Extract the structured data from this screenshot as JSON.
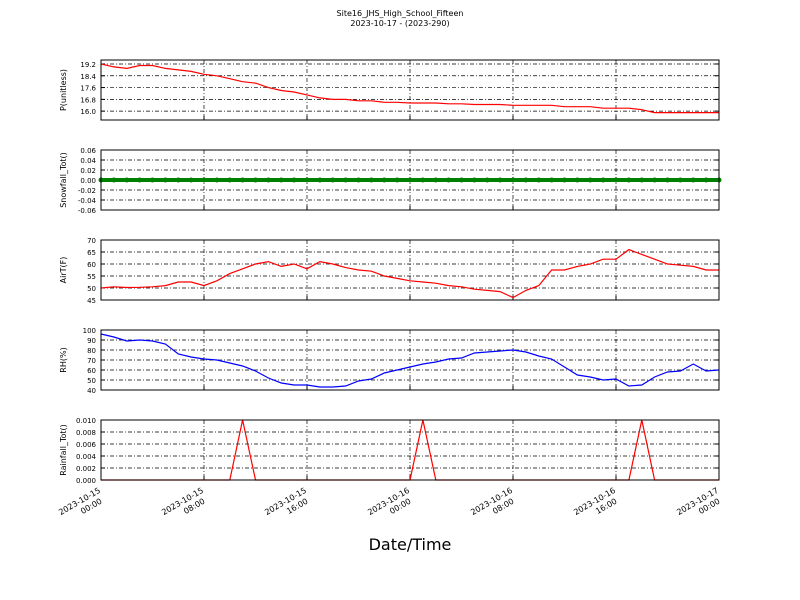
{
  "chart_data": [
    {
      "type": "line",
      "title": "Site16_JHS_High_School_Fifteen",
      "subtitle": "2023-10-17 - (2023-290)",
      "ylabel": "P(unitless)",
      "color": "#ff0000",
      "x": [
        "2023-10-15 00:00",
        "2023-10-15 01:00",
        "2023-10-15 02:00",
        "2023-10-15 03:00",
        "2023-10-15 04:00",
        "2023-10-15 05:00",
        "2023-10-15 06:00",
        "2023-10-15 07:00",
        "2023-10-15 08:00",
        "2023-10-15 09:00",
        "2023-10-15 10:00",
        "2023-10-15 11:00",
        "2023-10-15 12:00",
        "2023-10-15 13:00",
        "2023-10-15 14:00",
        "2023-10-15 15:00",
        "2023-10-15 16:00",
        "2023-10-15 17:00",
        "2023-10-15 18:00",
        "2023-10-15 19:00",
        "2023-10-15 20:00",
        "2023-10-15 21:00",
        "2023-10-15 22:00",
        "2023-10-15 23:00",
        "2023-10-16 00:00",
        "2023-10-16 01:00",
        "2023-10-16 02:00",
        "2023-10-16 03:00",
        "2023-10-16 04:00",
        "2023-10-16 05:00",
        "2023-10-16 06:00",
        "2023-10-16 07:00",
        "2023-10-16 08:00",
        "2023-10-16 09:00",
        "2023-10-16 10:00",
        "2023-10-16 11:00",
        "2023-10-16 12:00",
        "2023-10-16 13:00",
        "2023-10-16 14:00",
        "2023-10-16 15:00",
        "2023-10-16 16:00",
        "2023-10-16 17:00",
        "2023-10-16 18:00",
        "2023-10-16 19:00",
        "2023-10-16 20:00",
        "2023-10-16 21:00",
        "2023-10-16 22:00",
        "2023-10-16 23:00",
        "2023-10-17 00:00"
      ],
      "values": [
        19.2,
        19.0,
        18.9,
        19.1,
        19.1,
        18.9,
        18.8,
        18.7,
        18.5,
        18.4,
        18.2,
        18.0,
        17.9,
        17.6,
        17.4,
        17.3,
        17.1,
        16.9,
        16.8,
        16.8,
        16.7,
        16.7,
        16.6,
        16.6,
        16.55,
        16.55,
        16.55,
        16.5,
        16.5,
        16.45,
        16.45,
        16.45,
        16.4,
        16.4,
        16.4,
        16.4,
        16.3,
        16.3,
        16.3,
        16.2,
        16.2,
        16.2,
        16.1,
        15.9,
        15.9,
        15.9,
        15.9,
        15.9,
        15.9
      ],
      "xlim": [
        "2023-10-15 00:00",
        "2023-10-17 00:00"
      ],
      "xticks": [
        "2023-10-15 00:00",
        "2023-10-15 08:00",
        "2023-10-15 16:00",
        "2023-10-16 00:00",
        "2023-10-16 08:00",
        "2023-10-16 16:00",
        "2023-10-17 00:00"
      ],
      "ylim": [
        15.4,
        19.47
      ],
      "yticks": [
        {
          "value": 16,
          "label": "16.0"
        },
        16.8,
        17.6,
        18.4,
        19.2
      ],
      "grid": true
    },
    {
      "type": "scatter",
      "ylabel": "Snowfall_Tot()",
      "color": "#008000",
      "x": [
        "2023-10-15 00:00",
        "2023-10-15 01:00",
        "2023-10-15 02:00",
        "2023-10-15 03:00",
        "2023-10-15 04:00",
        "2023-10-15 05:00",
        "2023-10-15 06:00",
        "2023-10-15 07:00",
        "2023-10-15 08:00",
        "2023-10-15 09:00",
        "2023-10-15 10:00",
        "2023-10-15 11:00",
        "2023-10-15 12:00",
        "2023-10-15 13:00",
        "2023-10-15 14:00",
        "2023-10-15 15:00",
        "2023-10-15 16:00",
        "2023-10-15 17:00",
        "2023-10-15 18:00",
        "2023-10-15 19:00",
        "2023-10-15 20:00",
        "2023-10-15 21:00",
        "2023-10-15 22:00",
        "2023-10-15 23:00",
        "2023-10-16 00:00",
        "2023-10-16 01:00",
        "2023-10-16 02:00",
        "2023-10-16 03:00",
        "2023-10-16 04:00",
        "2023-10-16 05:00",
        "2023-10-16 06:00",
        "2023-10-16 07:00",
        "2023-10-16 08:00",
        "2023-10-16 09:00",
        "2023-10-16 10:00",
        "2023-10-16 11:00",
        "2023-10-16 12:00",
        "2023-10-16 13:00",
        "2023-10-16 14:00",
        "2023-10-16 15:00",
        "2023-10-16 16:00",
        "2023-10-16 17:00",
        "2023-10-16 18:00",
        "2023-10-16 19:00",
        "2023-10-16 20:00",
        "2023-10-16 21:00",
        "2023-10-16 22:00",
        "2023-10-16 23:00",
        "2023-10-17 00:00"
      ],
      "values": [
        0,
        0,
        0,
        0,
        0,
        0,
        0,
        0,
        0,
        0,
        0,
        0,
        0,
        0,
        0,
        0,
        0,
        0,
        0,
        0,
        0,
        0,
        0,
        0,
        0,
        0,
        0,
        0,
        0,
        0,
        0,
        0,
        0,
        0,
        0,
        0,
        0,
        0,
        0,
        0,
        0,
        0,
        0,
        0,
        0,
        0,
        0,
        0,
        0
      ],
      "xlim": [
        "2023-10-15 00:00",
        "2023-10-17 00:00"
      ],
      "xticks": [
        "2023-10-15 00:00",
        "2023-10-15 08:00",
        "2023-10-15 16:00",
        "2023-10-16 00:00",
        "2023-10-16 08:00",
        "2023-10-16 16:00",
        "2023-10-17 00:00"
      ],
      "ylim": [
        -0.06,
        0.06
      ],
      "yticks": [
        -0.06,
        -0.04,
        -0.02,
        {
          "value": 0,
          "label": "0.00"
        },
        0.02,
        0.04,
        0.06
      ],
      "grid": true
    },
    {
      "type": "line",
      "ylabel": "AirT(F)",
      "color": "#ff0000",
      "x": [
        "2023-10-15 00:00",
        "2023-10-15 01:00",
        "2023-10-15 02:00",
        "2023-10-15 03:00",
        "2023-10-15 04:00",
        "2023-10-15 05:00",
        "2023-10-15 06:00",
        "2023-10-15 07:00",
        "2023-10-15 08:00",
        "2023-10-15 09:00",
        "2023-10-15 10:00",
        "2023-10-15 11:00",
        "2023-10-15 12:00",
        "2023-10-15 13:00",
        "2023-10-15 14:00",
        "2023-10-15 15:00",
        "2023-10-15 16:00",
        "2023-10-15 17:00",
        "2023-10-15 18:00",
        "2023-10-15 19:00",
        "2023-10-15 20:00",
        "2023-10-15 21:00",
        "2023-10-15 22:00",
        "2023-10-15 23:00",
        "2023-10-16 00:00",
        "2023-10-16 01:00",
        "2023-10-16 02:00",
        "2023-10-16 03:00",
        "2023-10-16 04:00",
        "2023-10-16 05:00",
        "2023-10-16 06:00",
        "2023-10-16 07:00",
        "2023-10-16 08:00",
        "2023-10-16 09:00",
        "2023-10-16 10:00",
        "2023-10-16 11:00",
        "2023-10-16 12:00",
        "2023-10-16 13:00",
        "2023-10-16 14:00",
        "2023-10-16 15:00",
        "2023-10-16 16:00",
        "2023-10-16 17:00",
        "2023-10-16 18:00",
        "2023-10-16 19:00",
        "2023-10-16 20:00",
        "2023-10-16 21:00",
        "2023-10-16 22:00",
        "2023-10-16 23:00",
        "2023-10-17 00:00"
      ],
      "values": [
        50,
        50.5,
        50.2,
        50.3,
        50.5,
        51,
        52.5,
        52.5,
        51,
        53,
        56,
        58,
        60,
        61,
        59,
        60,
        58,
        61,
        60,
        58.5,
        57.5,
        57,
        55,
        54,
        53,
        52.5,
        52,
        51,
        50.5,
        49.5,
        49,
        48.5,
        46,
        49,
        51,
        57.5,
        57.5,
        59,
        60,
        62,
        62,
        66,
        64,
        62,
        60,
        59.5,
        59,
        57.5,
        57.5
      ],
      "xlim": [
        "2023-10-15 00:00",
        "2023-10-17 00:00"
      ],
      "xticks": [
        "2023-10-15 00:00",
        "2023-10-15 08:00",
        "2023-10-15 16:00",
        "2023-10-16 00:00",
        "2023-10-16 08:00",
        "2023-10-16 16:00",
        "2023-10-17 00:00"
      ],
      "ylim": [
        45,
        70
      ],
      "yticks": [
        45,
        50,
        55,
        60,
        65,
        70
      ],
      "grid": true
    },
    {
      "type": "line",
      "ylabel": "RH(%)",
      "color": "#0000ff",
      "x": [
        "2023-10-15 00:00",
        "2023-10-15 01:00",
        "2023-10-15 02:00",
        "2023-10-15 03:00",
        "2023-10-15 04:00",
        "2023-10-15 05:00",
        "2023-10-15 06:00",
        "2023-10-15 07:00",
        "2023-10-15 08:00",
        "2023-10-15 09:00",
        "2023-10-15 10:00",
        "2023-10-15 11:00",
        "2023-10-15 12:00",
        "2023-10-15 13:00",
        "2023-10-15 14:00",
        "2023-10-15 15:00",
        "2023-10-15 16:00",
        "2023-10-15 17:00",
        "2023-10-15 18:00",
        "2023-10-15 19:00",
        "2023-10-15 20:00",
        "2023-10-15 21:00",
        "2023-10-15 22:00",
        "2023-10-15 23:00",
        "2023-10-16 00:00",
        "2023-10-16 01:00",
        "2023-10-16 02:00",
        "2023-10-16 03:00",
        "2023-10-16 04:00",
        "2023-10-16 05:00",
        "2023-10-16 06:00",
        "2023-10-16 07:00",
        "2023-10-16 08:00",
        "2023-10-16 09:00",
        "2023-10-16 10:00",
        "2023-10-16 11:00",
        "2023-10-16 12:00",
        "2023-10-16 13:00",
        "2023-10-16 14:00",
        "2023-10-16 15:00",
        "2023-10-16 16:00",
        "2023-10-16 17:00",
        "2023-10-16 18:00",
        "2023-10-16 19:00",
        "2023-10-16 20:00",
        "2023-10-16 21:00",
        "2023-10-16 22:00",
        "2023-10-16 23:00",
        "2023-10-17 00:00"
      ],
      "values": [
        96,
        93,
        89,
        90,
        89,
        86,
        76,
        73,
        71,
        70,
        67,
        64,
        59,
        52,
        47,
        45,
        45,
        43,
        43,
        44,
        49,
        51,
        57,
        60,
        63,
        66,
        68,
        71,
        72,
        77,
        78,
        79,
        80,
        78,
        74,
        71,
        63,
        55,
        53,
        50,
        51,
        44,
        45,
        53,
        58,
        59,
        66,
        59,
        60
      ],
      "xlim": [
        "2023-10-15 00:00",
        "2023-10-17 00:00"
      ],
      "xticks": [
        "2023-10-15 00:00",
        "2023-10-15 08:00",
        "2023-10-15 16:00",
        "2023-10-16 00:00",
        "2023-10-16 08:00",
        "2023-10-16 16:00",
        "2023-10-17 00:00"
      ],
      "ylim": [
        40,
        100
      ],
      "yticks": [
        40,
        50,
        60,
        70,
        80,
        90,
        100
      ],
      "grid": true
    },
    {
      "type": "line",
      "ylabel": "Rainfall_Tot()",
      "xlabel": "Date/Time",
      "color": "#ff0000",
      "x": [
        "2023-10-15 00:00",
        "2023-10-15 01:00",
        "2023-10-15 02:00",
        "2023-10-15 03:00",
        "2023-10-15 04:00",
        "2023-10-15 05:00",
        "2023-10-15 06:00",
        "2023-10-15 07:00",
        "2023-10-15 08:00",
        "2023-10-15 09:00",
        "2023-10-15 10:00",
        "2023-10-15 11:00",
        "2023-10-15 12:00",
        "2023-10-15 13:00",
        "2023-10-15 14:00",
        "2023-10-15 15:00",
        "2023-10-15 16:00",
        "2023-10-15 17:00",
        "2023-10-15 18:00",
        "2023-10-15 19:00",
        "2023-10-15 20:00",
        "2023-10-15 21:00",
        "2023-10-15 22:00",
        "2023-10-15 23:00",
        "2023-10-16 00:00",
        "2023-10-16 01:00",
        "2023-10-16 02:00",
        "2023-10-16 03:00",
        "2023-10-16 04:00",
        "2023-10-16 05:00",
        "2023-10-16 06:00",
        "2023-10-16 07:00",
        "2023-10-16 08:00",
        "2023-10-16 09:00",
        "2023-10-16 10:00",
        "2023-10-16 11:00",
        "2023-10-16 12:00",
        "2023-10-16 13:00",
        "2023-10-16 14:00",
        "2023-10-16 15:00",
        "2023-10-16 16:00",
        "2023-10-16 17:00",
        "2023-10-16 18:00",
        "2023-10-16 19:00",
        "2023-10-16 20:00",
        "2023-10-16 21:00",
        "2023-10-16 22:00",
        "2023-10-16 23:00",
        "2023-10-17 00:00"
      ],
      "values": [
        0,
        0,
        0,
        0,
        0,
        0,
        0,
        0,
        0,
        0,
        0,
        0.01,
        0,
        0,
        0,
        0,
        0,
        0,
        0,
        0,
        0,
        0,
        0,
        0,
        0,
        0.01,
        0,
        0,
        0,
        0,
        0,
        0,
        0,
        0,
        0,
        0,
        0,
        0,
        0,
        0,
        0,
        0,
        0.01,
        0,
        0,
        0,
        0,
        0,
        0
      ],
      "xlim": [
        "2023-10-15 00:00",
        "2023-10-17 00:00"
      ],
      "xticks": [
        "2023-10-15 00:00",
        "2023-10-15 08:00",
        "2023-10-15 16:00",
        "2023-10-16 00:00",
        "2023-10-16 08:00",
        "2023-10-16 16:00",
        "2023-10-17 00:00"
      ],
      "ylim": [
        0,
        0.01
      ],
      "yticks": [
        {
          "value": 0,
          "label": "0.000"
        },
        {
          "value": 0.002,
          "label": "0.002"
        },
        {
          "value": 0.004,
          "label": "0.004"
        },
        {
          "value": 0.006,
          "label": "0.006"
        },
        {
          "value": 0.008,
          "label": "0.008"
        },
        {
          "value": 0.01,
          "label": "0.010"
        }
      ],
      "grid": true
    }
  ]
}
